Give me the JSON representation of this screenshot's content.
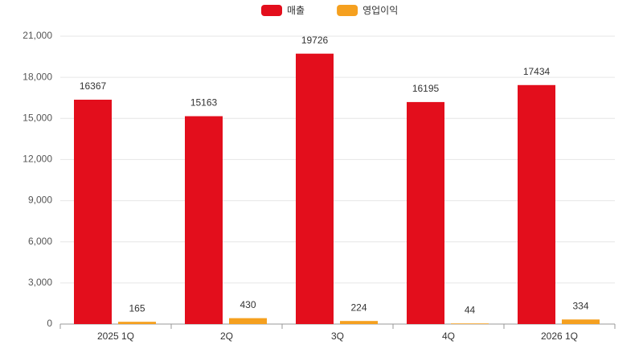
{
  "chart_data": {
    "type": "bar",
    "categories": [
      "2025 1Q",
      "2Q",
      "3Q",
      "4Q",
      "2026 1Q"
    ],
    "series": [
      {
        "name": "매출",
        "color": "#e30e1c",
        "values": [
          16367,
          15163,
          19726,
          16195,
          17434
        ]
      },
      {
        "name": "영업이익",
        "color": "#f5a01f",
        "values": [
          165,
          430,
          224,
          44,
          334
        ]
      }
    ],
    "ylim": [
      0,
      21000
    ],
    "yticks": [
      0,
      {
        "value": 3000,
        "label": "3,000"
      },
      {
        "value": 6000,
        "label": "6,000"
      },
      {
        "value": 9000,
        "label": "9,000"
      },
      {
        "value": 12000,
        "label": "12,000"
      },
      {
        "value": 15000,
        "label": "15,000"
      },
      {
        "value": 18000,
        "label": "18,000"
      },
      {
        "value": 21000,
        "label": "21,000"
      }
    ],
    "grid": true,
    "legend": "top"
  }
}
